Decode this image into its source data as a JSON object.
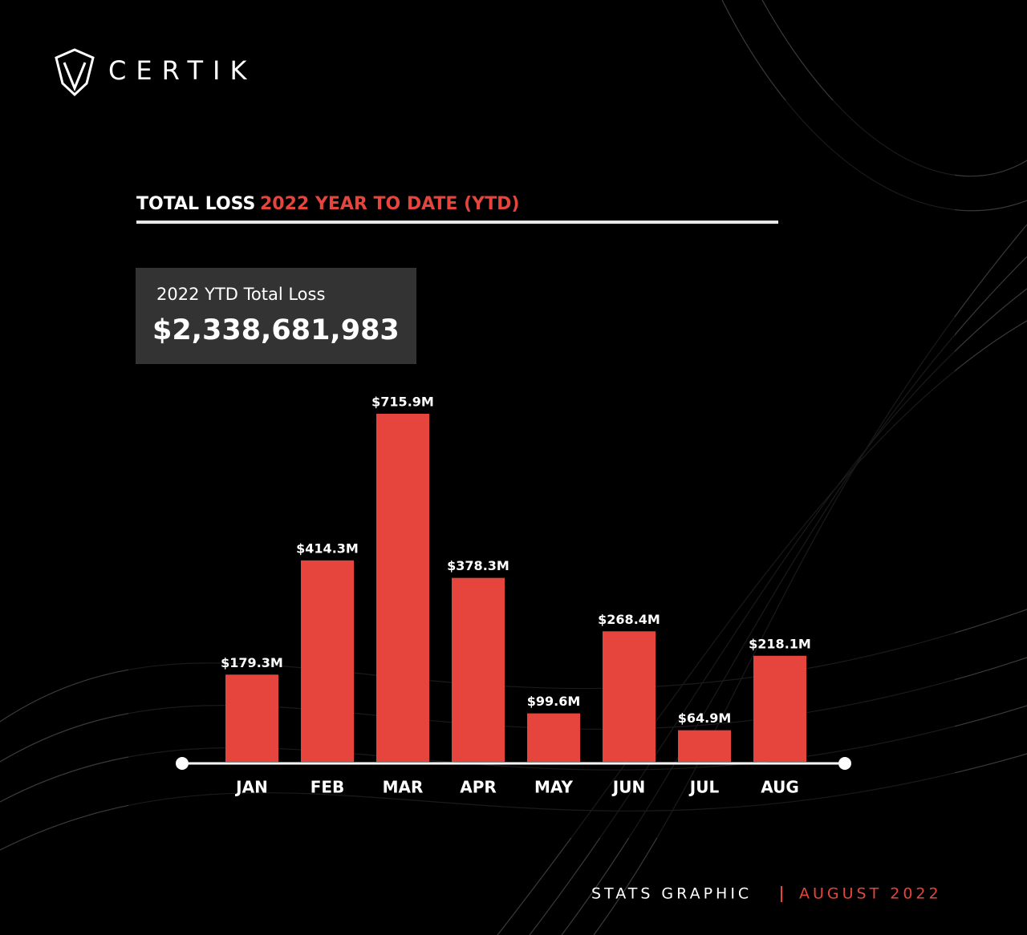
{
  "brand": "CERTIK",
  "chart_data": {
    "type": "bar",
    "title": "TOTAL LOSS",
    "subtitle": "2022 YEAR TO DATE (YTD)",
    "summary_label": "2022 YTD Total Loss",
    "summary_value": "$2,338,681,983",
    "categories": [
      "JAN",
      "FEB",
      "MAR",
      "APR",
      "MAY",
      "JUN",
      "JUL",
      "AUG"
    ],
    "values": [
      179.3,
      414.3,
      715.9,
      378.3,
      99.6,
      268.4,
      64.9,
      218.1
    ],
    "value_labels": [
      "$179.3M",
      "$414.3M",
      "$715.9M",
      "$378.3M",
      "$99.6M",
      "$268.4M",
      "$64.9M",
      "$218.1M"
    ],
    "color": "#e5453d",
    "ylim": [
      0,
      800
    ]
  },
  "footer": {
    "left": "STATS GRAPHIC",
    "right": "AUGUST 2022"
  }
}
